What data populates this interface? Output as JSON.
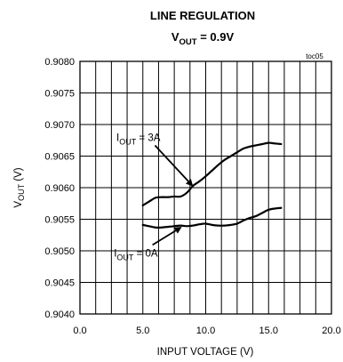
{
  "chart_data": {
    "type": "line",
    "title": "LINE REGULATION",
    "subtitle": {
      "main": "V",
      "sub": "OUT",
      "rest": " = 0.9V"
    },
    "tag": "toc05",
    "xlabel": "INPUT VOLTAGE (V)",
    "ylabel": {
      "main": "V",
      "sub": "OUT",
      "rest": " (V)"
    },
    "xlim": [
      0,
      20
    ],
    "ylim": [
      0.904,
      0.908
    ],
    "xticks": [
      0,
      5,
      10,
      15,
      20
    ],
    "xtick_labels": [
      "0.0",
      "5.0",
      "10.0",
      "15.0",
      "20.0"
    ],
    "yticks": [
      0.904,
      0.9045,
      0.905,
      0.9055,
      0.906,
      0.9065,
      0.907,
      0.9075,
      0.908
    ],
    "ytick_labels": [
      "0.9040",
      "0.9045",
      "0.9050",
      "0.9055",
      "0.9060",
      "0.9065",
      "0.9070",
      "0.9075",
      "0.9080"
    ],
    "grid": true,
    "series": [
      {
        "name": {
          "main": "I",
          "sub": "OUT",
          "rest": " = 3A"
        },
        "x": [
          5.0,
          5.5,
          6.0,
          6.5,
          7.0,
          7.5,
          8.0,
          8.5,
          9.0,
          9.5,
          10.0,
          10.5,
          11.0,
          11.5,
          12.0,
          12.5,
          13.0,
          13.5,
          14.0,
          14.5,
          15.0,
          15.5,
          16.0
        ],
        "y": [
          0.90572,
          0.90578,
          0.90584,
          0.90585,
          0.90585,
          0.90586,
          0.90586,
          0.90592,
          0.90603,
          0.9061,
          0.90618,
          0.90627,
          0.90636,
          0.90644,
          0.9065,
          0.90656,
          0.90662,
          0.90665,
          0.90667,
          0.90669,
          0.90671,
          0.9067,
          0.90669
        ]
      },
      {
        "name": {
          "main": "I",
          "sub": "OUT",
          "rest": " = 0A"
        },
        "x": [
          5.0,
          5.5,
          6.0,
          6.5,
          7.0,
          7.5,
          8.0,
          8.5,
          9.0,
          9.5,
          10.0,
          10.5,
          11.0,
          11.5,
          12.0,
          12.5,
          13.0,
          13.5,
          14.0,
          14.5,
          15.0,
          15.5,
          16.0
        ],
        "y": [
          0.90541,
          0.90539,
          0.90537,
          0.90537,
          0.90538,
          0.90539,
          0.9054,
          0.90539,
          0.9054,
          0.90542,
          0.90543,
          0.90541,
          0.9054,
          0.9054,
          0.90541,
          0.90543,
          0.90548,
          0.90552,
          0.90555,
          0.9056,
          0.90565,
          0.90567,
          0.90568
        ]
      }
    ],
    "annotations": [
      {
        "series": 0,
        "label_x": 2.9,
        "label_y": 0.90674,
        "arrow_to": [
          9.0,
          0.90602
        ]
      },
      {
        "series": 1,
        "label_x": 2.7,
        "label_y": 0.90491,
        "arrow_to": [
          8.1,
          0.90538
        ]
      }
    ]
  }
}
